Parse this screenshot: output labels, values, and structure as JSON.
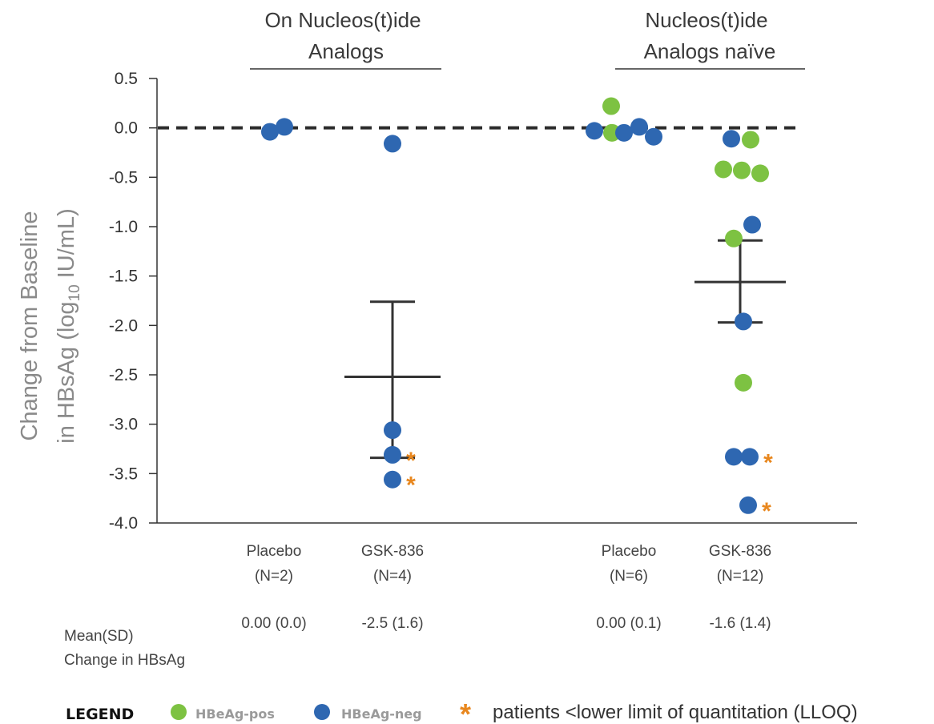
{
  "chart_data": {
    "type": "scatter",
    "ylabel_line1": "Change from Baseline",
    "ylabel_line2_pre": "in HBsAg (log",
    "ylabel_line2_sub": "10",
    "ylabel_line2_post": " IU/mL)",
    "ylim": [
      -4.0,
      0.5
    ],
    "yticks": [
      "0.5",
      "0.0",
      "-0.5",
      "-1.0",
      "-1.5",
      "-2.0",
      "-2.5",
      "-3.0",
      "-3.5",
      "-4.0"
    ],
    "ytick_values": [
      0.5,
      0.0,
      -0.5,
      -1.0,
      -1.5,
      -2.0,
      -2.5,
      -3.0,
      -3.5,
      -4.0
    ],
    "reference_line": 0.0,
    "groups": [
      {
        "line1": "On Nucleos(t)ide",
        "line2": "Analogs"
      },
      {
        "line1": "Nucleos(t)ide",
        "line2": "Analogs naïve"
      }
    ],
    "colors": {
      "HBeAg-pos": "#7dc242",
      "HBeAg-neg": "#2e67b1",
      "lloq": "#e8871e",
      "errorbar": "#333333"
    },
    "categories": [
      {
        "name": "Placebo",
        "n": "(N=2)",
        "stat": "0.00 (0.0)",
        "mean": null,
        "sd_low": null,
        "sd_high": null,
        "points": [
          {
            "y": -0.04,
            "type": "HBeAg-neg",
            "lloq": false
          },
          {
            "y": 0.01,
            "type": "HBeAg-neg",
            "lloq": false
          }
        ]
      },
      {
        "name": "GSK-836",
        "n": "(N=4)",
        "stat": "-2.5 (1.6)",
        "mean": -2.52,
        "sd_low": -3.34,
        "sd_high": -1.76,
        "points": [
          {
            "y": -0.16,
            "type": "HBeAg-neg",
            "lloq": false
          },
          {
            "y": -3.06,
            "type": "HBeAg-neg",
            "lloq": false
          },
          {
            "y": -3.31,
            "type": "HBeAg-neg",
            "lloq": true
          },
          {
            "y": -3.56,
            "type": "HBeAg-neg",
            "lloq": true
          }
        ]
      },
      {
        "name": "Placebo",
        "n": "(N=6)",
        "stat": "0.00 (0.1)",
        "mean": null,
        "sd_low": null,
        "sd_high": null,
        "points": [
          {
            "y": -0.03,
            "type": "HBeAg-neg",
            "lloq": false
          },
          {
            "y": -0.05,
            "type": "HBeAg-pos",
            "lloq": false
          },
          {
            "y": 0.22,
            "type": "HBeAg-pos",
            "lloq": false
          },
          {
            "y": -0.05,
            "type": "HBeAg-neg",
            "lloq": false
          },
          {
            "y": 0.01,
            "type": "HBeAg-neg",
            "lloq": false
          },
          {
            "y": -0.09,
            "type": "HBeAg-neg",
            "lloq": false
          }
        ]
      },
      {
        "name": "GSK-836",
        "n": "(N=12)",
        "stat": "-1.6 (1.4)",
        "mean": -1.56,
        "sd_low": -1.97,
        "sd_high": -1.14,
        "points": [
          {
            "y": -0.11,
            "type": "HBeAg-neg",
            "lloq": false
          },
          {
            "y": -0.12,
            "type": "HBeAg-pos",
            "lloq": false
          },
          {
            "y": -0.42,
            "type": "HBeAg-pos",
            "lloq": false
          },
          {
            "y": -0.43,
            "type": "HBeAg-pos",
            "lloq": false
          },
          {
            "y": -0.46,
            "type": "HBeAg-pos",
            "lloq": false
          },
          {
            "y": -0.98,
            "type": "HBeAg-neg",
            "lloq": false
          },
          {
            "y": -1.12,
            "type": "HBeAg-pos",
            "lloq": false
          },
          {
            "y": -1.96,
            "type": "HBeAg-neg",
            "lloq": false
          },
          {
            "y": -2.58,
            "type": "HBeAg-pos",
            "lloq": false
          },
          {
            "y": -3.33,
            "type": "HBeAg-neg",
            "lloq": false
          },
          {
            "y": -3.33,
            "type": "HBeAg-neg",
            "lloq": true
          },
          {
            "y": -3.82,
            "type": "HBeAg-neg",
            "lloq": true
          }
        ]
      }
    ],
    "stat_label_line1": "Mean(SD)",
    "stat_label_line2": "Change in HBsAg"
  },
  "legend": {
    "title": "LEGEND",
    "pos_label": "HBeAg-pos",
    "neg_label": "HBeAg-neg",
    "star": "*",
    "star_label": "patients <lower limit of quantitation (LLOQ)"
  }
}
